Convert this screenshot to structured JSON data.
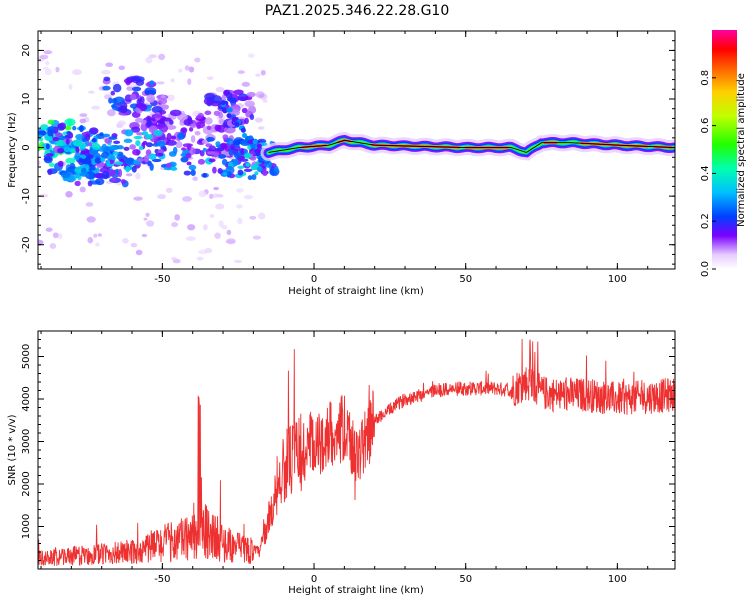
{
  "title": "PAZ1.2025.346.22.28.G10",
  "chart_data": [
    {
      "type": "heatmap",
      "xlabel": "Height of straight line (km)",
      "ylabel": "Frequency (Hz)",
      "xlim": [
        -91,
        119
      ],
      "ylim": [
        -25,
        24
      ],
      "xticks": [
        -50,
        0,
        50,
        100
      ],
      "yticks": [
        -20,
        -10,
        0,
        10,
        20
      ],
      "colorbar": {
        "label": "Normalized spectral amplitude",
        "range": [
          0.0,
          1.0
        ],
        "ticks": [
          0.0,
          0.2,
          0.4,
          0.6,
          0.8
        ],
        "tick_labels": [
          "0.0",
          "0.2",
          "0.4",
          "0.6",
          "0.8"
        ]
      },
      "ridge": {
        "description_points_km_hz": [
          [
            -15,
            -1
          ],
          [
            -5,
            0
          ],
          [
            5,
            0.5
          ],
          [
            10,
            1.5
          ],
          [
            20,
            0.5
          ],
          [
            50,
            0
          ],
          [
            65,
            0
          ],
          [
            70,
            -1
          ],
          [
            75,
            1
          ],
          [
            85,
            1
          ],
          [
            100,
            0.5
          ],
          [
            119,
            0
          ]
        ]
      },
      "scatter_clusters": [
        {
          "x": -88,
          "y": 2,
          "amp": 0.4
        },
        {
          "x": -80,
          "y": -2,
          "amp": 0.3
        },
        {
          "x": -75,
          "y": -3,
          "amp": 0.25
        },
        {
          "x": -70,
          "y": -4,
          "amp": 0.2
        },
        {
          "x": -61,
          "y": 11,
          "amp": 0.2
        },
        {
          "x": -55,
          "y": 7,
          "amp": 0.15
        },
        {
          "x": -45,
          "y": 4,
          "amp": 0.12
        },
        {
          "x": -35,
          "y": 2,
          "amp": 0.12
        },
        {
          "x": -28,
          "y": 8,
          "amp": 0.15
        },
        {
          "x": -20,
          "y": -2,
          "amp": 0.2
        }
      ]
    },
    {
      "type": "line",
      "xlabel": "Height of straight line (km)",
      "ylabel": "SNR (10 * v/v)",
      "xlim": [
        -91,
        119
      ],
      "ylim": [
        0,
        5600
      ],
      "xticks": [
        -50,
        0,
        50,
        100
      ],
      "yticks": [
        1000,
        2000,
        3000,
        4000,
        5000
      ],
      "series": [
        {
          "name": "SNR",
          "color": "#ee3030",
          "envelope_km": [
            -91,
            -80,
            -70,
            -60,
            -50,
            -40,
            -35,
            -30,
            -25,
            -18,
            -10,
            -5,
            0,
            5,
            10,
            14,
            20,
            30,
            40,
            50,
            60,
            65,
            70,
            75,
            80,
            90,
            100,
            110,
            119
          ],
          "envelope_snr": [
            250,
            300,
            350,
            400,
            600,
            750,
            900,
            600,
            500,
            400,
            2400,
            2700,
            2800,
            3200,
            3300,
            2600,
            3500,
            4000,
            4200,
            4250,
            4250,
            4200,
            4400,
            4150,
            4100,
            4100,
            4000,
            4050,
            4100
          ]
        }
      ]
    }
  ]
}
